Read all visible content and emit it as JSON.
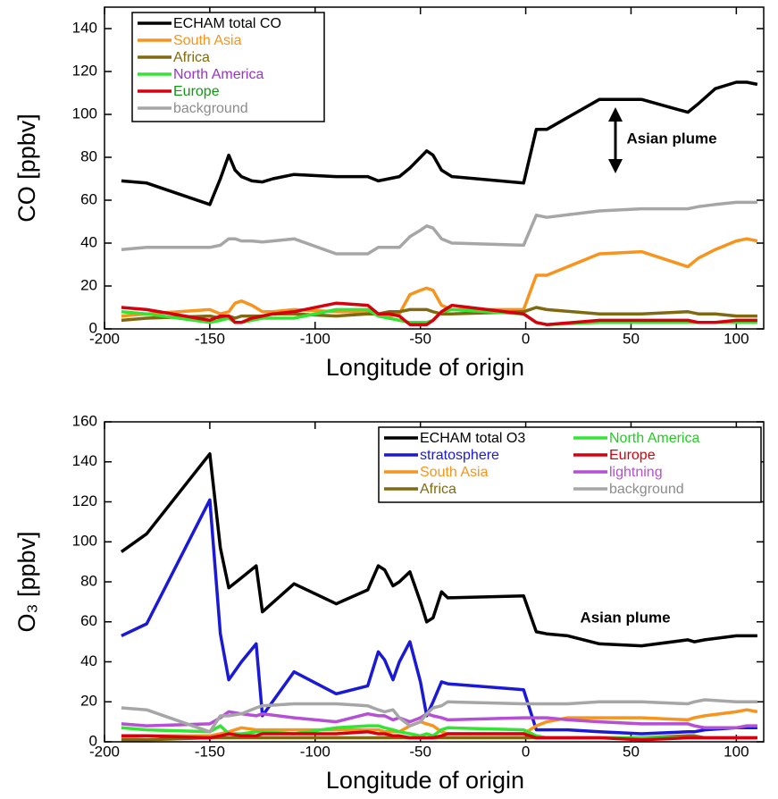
{
  "chart_data": [
    {
      "type": "line",
      "ylabel": "CO [ppbv]",
      "xlabel": "Longitude of origin",
      "annotation": "Asian plume",
      "xlim": [
        -200,
        113
      ],
      "ylim": [
        0,
        150
      ],
      "xticks": [
        -200,
        -150,
        -100,
        -50,
        0,
        50,
        100
      ],
      "yticks": [
        0,
        20,
        40,
        60,
        80,
        100,
        120,
        140
      ],
      "legend": "upper left",
      "legend_columns": 1,
      "x": [
        -192,
        -180,
        -150,
        -145,
        -141,
        -138,
        -135,
        -130,
        -125,
        -120,
        -110,
        -90,
        -75,
        -70,
        -65,
        -60,
        -55,
        -50,
        -47,
        -44,
        -40,
        -35,
        -1,
        5,
        10,
        35,
        55,
        77,
        82,
        90,
        100,
        105,
        110
      ],
      "series": [
        {
          "name": "ECHAM total CO",
          "color": "#000000",
          "text_color": "#000000",
          "values": [
            69,
            68,
            58,
            70,
            81,
            74,
            71,
            69,
            68.5,
            70,
            72,
            71,
            71,
            69,
            70,
            71,
            75,
            80,
            83,
            81,
            74,
            71,
            68,
            93,
            93,
            107,
            107,
            101,
            105,
            112,
            115,
            115,
            114
          ]
        },
        {
          "name": "South Asia",
          "color": "#f7941d",
          "text_color": "#f7941d",
          "values": [
            6,
            7,
            9,
            7,
            8,
            12,
            13,
            11,
            8,
            8,
            9,
            8,
            8,
            7,
            6,
            7,
            16,
            18,
            19,
            18,
            11,
            9,
            9,
            25,
            25,
            35,
            36,
            29,
            33,
            37,
            41,
            42,
            41
          ]
        },
        {
          "name": "Africa",
          "color": "#7f6a11",
          "text_color": "#7f6a11",
          "values": [
            4,
            5,
            6,
            5,
            6,
            5,
            6,
            6,
            6,
            7,
            7,
            6,
            7,
            7,
            8,
            8,
            9,
            9,
            9,
            8,
            7,
            7,
            8,
            10,
            9,
            7,
            7,
            8,
            7,
            7,
            6,
            6,
            6
          ]
        },
        {
          "name": "North America",
          "color": "#33e533",
          "text_color": "#9933cc",
          "values": [
            8,
            7,
            3,
            4,
            5,
            3,
            3,
            4,
            5,
            5,
            5,
            9,
            9,
            6,
            5,
            4,
            3,
            3,
            3,
            4,
            8,
            9,
            7,
            3,
            2,
            3,
            3,
            3,
            3,
            3,
            3,
            3,
            3
          ]
        },
        {
          "name": "Europe",
          "color": "#d7000f",
          "text_color": "#119911",
          "values": [
            10,
            9,
            4,
            6,
            6,
            3,
            3,
            5,
            6,
            7,
            8,
            12,
            11,
            7,
            7,
            6,
            2,
            2,
            2,
            4,
            8,
            11,
            7,
            3,
            2,
            4,
            4,
            4,
            3,
            3,
            4,
            4,
            4
          ]
        },
        {
          "name": "background",
          "color": "#a6a6a6",
          "text_color": "#8c8c8c",
          "values": [
            37,
            38,
            38,
            39,
            42,
            42,
            41,
            41,
            40.5,
            41,
            42,
            35,
            35,
            38,
            38,
            38,
            43,
            46,
            48,
            47,
            42,
            40,
            39,
            53,
            52,
            55,
            56,
            56,
            57,
            58,
            59,
            59,
            59
          ]
        }
      ]
    },
    {
      "type": "line",
      "ylabel": "O₃ [ppbv]",
      "xlabel": "Longitude of origin",
      "annotation": "Asian plume",
      "xlim": [
        -200,
        113
      ],
      "ylim": [
        0,
        160
      ],
      "xticks": [
        -200,
        -150,
        -100,
        -50,
        0,
        50,
        100
      ],
      "yticks": [
        0,
        20,
        40,
        60,
        80,
        100,
        120,
        140,
        160
      ],
      "legend": "upper right",
      "legend_columns": 2,
      "x": [
        -192,
        -180,
        -150,
        -145,
        -141,
        -135,
        -128,
        -125,
        -110,
        -90,
        -75,
        -70,
        -67,
        -63,
        -60,
        -55,
        -50,
        -47,
        -44,
        -40,
        -37,
        -1,
        5,
        10,
        20,
        35,
        55,
        77,
        80,
        85,
        100,
        105,
        110
      ],
      "series": [
        {
          "name": "ECHAM total O3",
          "color": "#000000",
          "text_color": "#000000",
          "values": [
            95,
            104,
            144,
            97,
            77,
            82,
            88,
            65,
            79,
            69,
            76,
            88,
            86,
            78,
            80,
            85,
            70,
            60,
            62,
            75,
            72,
            73,
            55,
            54,
            53,
            49,
            48,
            51,
            50,
            51,
            53,
            53,
            53
          ]
        },
        {
          "name": "stratosphere",
          "color": "#1a1ad6",
          "text_color": "#1a1ad6",
          "values": [
            53,
            59,
            121,
            54,
            31,
            40,
            49,
            13,
            35,
            24,
            28,
            45,
            41,
            31,
            40,
            50,
            30,
            13,
            20,
            30,
            29,
            26,
            6,
            6,
            6,
            5,
            4,
            5,
            5,
            6,
            7,
            7,
            7
          ]
        },
        {
          "name": "South Asia",
          "color": "#f7941d",
          "text_color": "#f7941d",
          "values": [
            2,
            3,
            3,
            4,
            5,
            7,
            6,
            6,
            6,
            6,
            6,
            6,
            5,
            5,
            5,
            8,
            10,
            9,
            8,
            5,
            4,
            4,
            8,
            10,
            12,
            12,
            12,
            11,
            12,
            13,
            15,
            16,
            15
          ]
        },
        {
          "name": "Africa",
          "color": "#7f6a11",
          "text_color": "#7f6a11",
          "values": [
            1,
            1,
            2,
            2,
            2,
            2,
            2,
            2,
            2,
            2,
            2,
            2,
            2,
            2,
            2,
            2,
            2,
            2,
            2,
            2,
            2,
            2,
            2,
            2,
            2,
            2,
            2,
            3,
            3,
            2,
            2,
            2,
            2
          ]
        },
        {
          "name": "North America",
          "color": "#33e533",
          "text_color": "#22cc22",
          "values": [
            7,
            6,
            5,
            8,
            4,
            4,
            5,
            5,
            4,
            7,
            8,
            8,
            7,
            6,
            5,
            4,
            3,
            4,
            3,
            6,
            7,
            6,
            3,
            2,
            2,
            2,
            2,
            2,
            2,
            2,
            2,
            2,
            2
          ]
        },
        {
          "name": "Europe",
          "color": "#d7000f",
          "text_color": "#d7000f",
          "values": [
            3,
            3,
            2,
            3,
            4,
            3,
            3,
            4,
            4,
            4,
            5,
            4,
            4,
            3,
            3,
            2,
            2,
            2,
            2,
            3,
            4,
            4,
            2,
            2,
            2,
            2,
            1,
            2,
            2,
            2,
            2,
            2,
            2
          ]
        },
        {
          "name": "lightning",
          "color": "#b44fd6",
          "text_color": "#b44fd6",
          "values": [
            9,
            8,
            9,
            12,
            15,
            14,
            13,
            14,
            12,
            10,
            14,
            13,
            13,
            11,
            12,
            10,
            12,
            14,
            13,
            12,
            11,
            12,
            12,
            12,
            11,
            10,
            9,
            9,
            8,
            7,
            7,
            8,
            8
          ]
        },
        {
          "name": "background",
          "color": "#a6a6a6",
          "text_color": "#8c8c8c",
          "values": [
            17,
            16,
            5,
            13,
            13,
            14,
            17,
            18,
            19,
            19,
            18,
            16,
            15,
            16,
            12,
            8,
            10,
            14,
            17,
            18,
            20,
            19,
            19,
            19,
            19,
            20,
            20,
            19,
            20,
            21,
            20,
            20,
            20
          ]
        }
      ]
    }
  ]
}
